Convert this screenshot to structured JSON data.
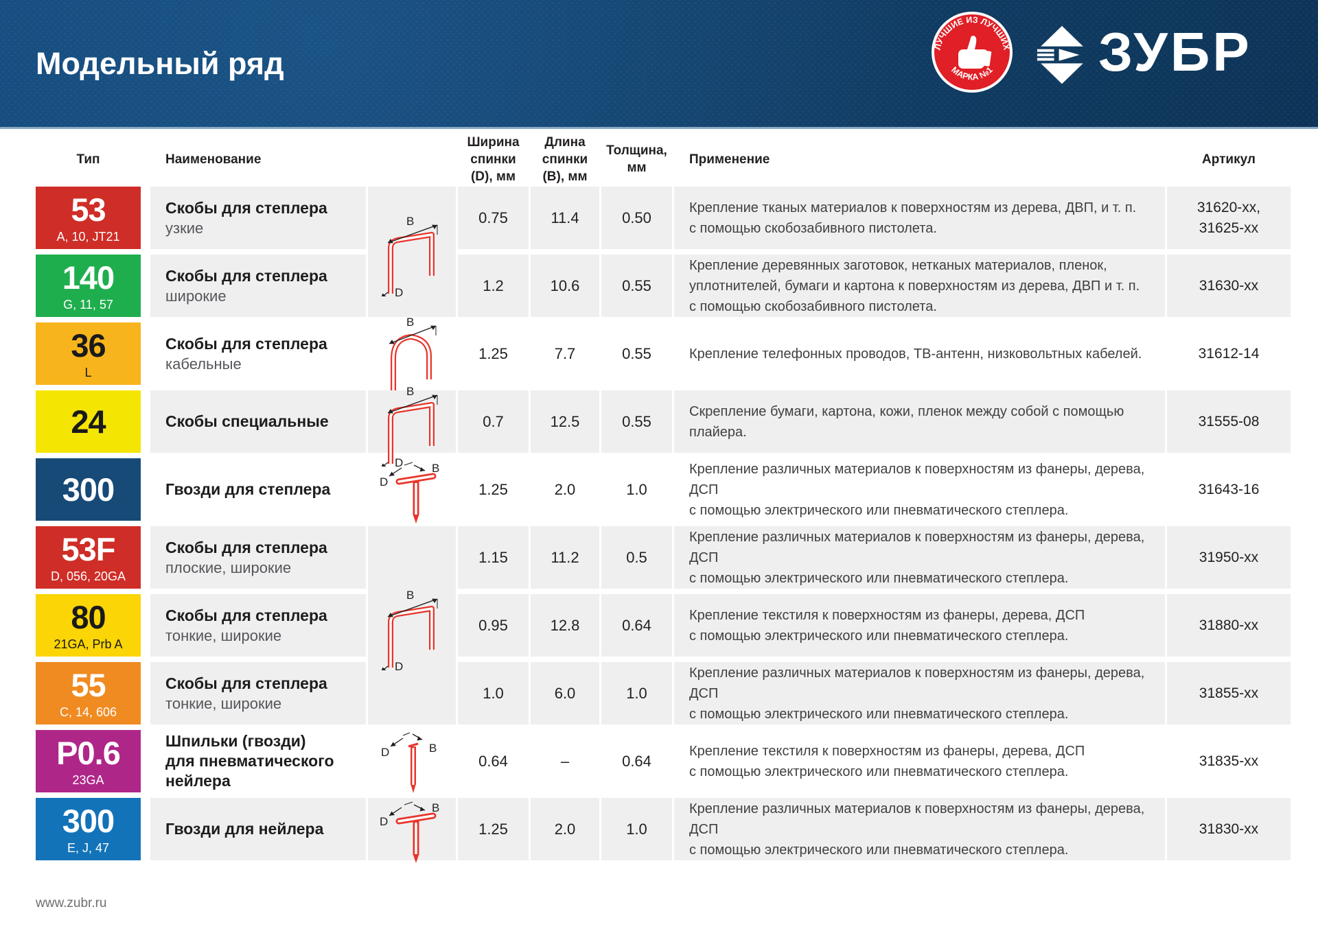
{
  "header": {
    "title": "Модельный ряд",
    "stamp": {
      "top_text": "ЛУЧШИЕ ИЗ ЛУЧШИХ",
      "bottom_text": "МАРКА №1"
    },
    "brand": "ЗУБР"
  },
  "columns": {
    "type": "Тип",
    "name": "Наименование",
    "width_line1": "Ширина",
    "width_line2": "спинки (D), мм",
    "length_line1": "Длина",
    "length_line2": "спинки (B), мм",
    "thickness_line1": "Толщина,",
    "thickness_line2": "мм",
    "application": "Применение",
    "article": "Артикул"
  },
  "diagram_labels": {
    "b": "B",
    "d": "D"
  },
  "colors": {
    "header_blue": "#11436f",
    "row_shade": "#efeff0",
    "staple_red": "#e8352b",
    "badge_red": "#cf2d27",
    "badge_green": "#1fae4d",
    "badge_amber": "#f8b41c",
    "badge_yellow": "#f5e503",
    "badge_navy": "#174a77",
    "badge_gold": "#fbd505",
    "badge_orange": "#f08b21",
    "badge_magenta": "#af2689",
    "badge_blue": "#1273b9"
  },
  "groups": [
    {
      "shade": "gray",
      "diagram": "staple-square",
      "rows": [
        {
          "type": "53",
          "type_sub": "A, 10, JT21",
          "badge_color": "#cf2d27",
          "badge_text": "#ffffff",
          "name_bold": [
            "Скобы для степлера"
          ],
          "name_sub": "узкие",
          "width": "0.75",
          "length": "11.4",
          "thickness": "0.50",
          "application": [
            "Крепление тканых материалов к поверхностям из дерева, ДВП, и т. п.",
            "с помощью скобозабивного пистолета."
          ],
          "article": [
            "31620-xx,",
            "31625-xx"
          ]
        },
        {
          "type": "140",
          "type_sub": "G, 11, 57",
          "badge_color": "#1fae4d",
          "badge_text": "#ffffff",
          "name_bold": [
            "Скобы для степлера"
          ],
          "name_sub": "широкие",
          "width": "1.2",
          "length": "10.6",
          "thickness": "0.55",
          "application": [
            "Крепление деревянных заготовок, нетканых материалов, пленок,",
            "уплотнителей, бумаги и картона к поверхностям из дерева, ДВП и т. п.",
            "с помощью скобозабивного пистолета."
          ],
          "article": [
            "31630-xx"
          ]
        }
      ]
    },
    {
      "shade": "white",
      "diagram": "staple-round",
      "rows": [
        {
          "type": "36",
          "type_sub": "L",
          "badge_color": "#f8b41c",
          "badge_text": "#1a1a1a",
          "name_bold": [
            "Скобы для степлера"
          ],
          "name_sub": "кабельные",
          "width": "1.25",
          "length": "7.7",
          "thickness": "0.55",
          "application": [
            "Крепление телефонных проводов, ТВ-антенн, низковольтных кабелей."
          ],
          "article": [
            "31612-14"
          ]
        }
      ]
    },
    {
      "shade": "gray",
      "diagram": "staple-square",
      "rows": [
        {
          "type": "24",
          "type_sub": "",
          "badge_color": "#f5e503",
          "badge_text": "#1a1a1a",
          "name_bold": [
            "Скобы специальные"
          ],
          "name_sub": "",
          "width": "0.7",
          "length": "12.5",
          "thickness": "0.55",
          "application": [
            "Скрепление бумаги, картона, кожи, пленок между собой с помощью плайера."
          ],
          "article": [
            "31555-08"
          ]
        }
      ]
    },
    {
      "shade": "white",
      "diagram": "nail",
      "rows": [
        {
          "type": "300",
          "type_sub": "",
          "badge_color": "#174a77",
          "badge_text": "#ffffff",
          "name_bold": [
            "Гвозди для степлера"
          ],
          "name_sub": "",
          "width": "1.25",
          "length": "2.0",
          "thickness": "1.0",
          "application": [
            "Крепление различных материалов к поверхностям из фанеры, дерева, ДСП",
            "с помощью электрического или пневматического степлера."
          ],
          "article": [
            "31643-16"
          ]
        }
      ]
    },
    {
      "shade": "gray",
      "diagram": "staple-square",
      "rows": [
        {
          "type": "53F",
          "type_sub": "D, 056, 20GA",
          "badge_color": "#cf2d27",
          "badge_text": "#ffffff",
          "name_bold": [
            "Скобы для степлера"
          ],
          "name_sub": "плоские, широкие",
          "width": "1.15",
          "length": "11.2",
          "thickness": "0.5",
          "application": [
            "Крепление различных материалов к поверхностям из фанеры, дерева, ДСП",
            "с помощью электрического или пневматического степлера."
          ],
          "article": [
            "31950-xx"
          ]
        },
        {
          "type": "80",
          "type_sub": "21GA, Prb A",
          "badge_color": "#fbd505",
          "badge_text": "#1a1a1a",
          "name_bold": [
            "Скобы для степлера"
          ],
          "name_sub": "тонкие, широкие",
          "width": "0.95",
          "length": "12.8",
          "thickness": "0.64",
          "application": [
            "Крепление текстиля к поверхностям из фанеры, дерева, ДСП",
            "с помощью электрического или пневматического степлера."
          ],
          "article": [
            "31880-xx"
          ]
        },
        {
          "type": "55",
          "type_sub": "C, 14, 606",
          "badge_color": "#f08b21",
          "badge_text": "#ffffff",
          "name_bold": [
            "Скобы для степлера"
          ],
          "name_sub": "тонкие, широкие",
          "width": "1.0",
          "length": "6.0",
          "thickness": "1.0",
          "application": [
            "Крепление различных материалов к поверхностям из фанеры, дерева, ДСП",
            "с помощью электрического или пневматического степлера."
          ],
          "article": [
            "31855-xx"
          ]
        }
      ]
    },
    {
      "shade": "white",
      "diagram": "pin",
      "rows": [
        {
          "type": "P0.6",
          "type_sub": "23GA",
          "badge_color": "#af2689",
          "badge_text": "#ffffff",
          "name_bold": [
            "Шпильки (гвозди)",
            "для пневматического",
            "нейлера"
          ],
          "name_sub": "",
          "width": "0.64",
          "length": "–",
          "thickness": "0.64",
          "application": [
            "Крепление текстиля к поверхностям из фанеры, дерева, ДСП",
            "с помощью электрического или пневматического степлера."
          ],
          "article": [
            "31835-xx"
          ]
        }
      ]
    },
    {
      "shade": "gray",
      "diagram": "nail",
      "rows": [
        {
          "type": "300",
          "type_sub": "E, J, 47",
          "badge_color": "#1273b9",
          "badge_text": "#ffffff",
          "name_bold": [
            "Гвозди для нейлера"
          ],
          "name_sub": "",
          "width": "1.25",
          "length": "2.0",
          "thickness": "1.0",
          "application": [
            "Крепление различных материалов к поверхностям из фанеры, дерева, ДСП",
            "с помощью электрического или пневматического степлера."
          ],
          "article": [
            "31830-xx"
          ]
        }
      ]
    }
  ],
  "footer": {
    "url": "www.zubr.ru"
  }
}
